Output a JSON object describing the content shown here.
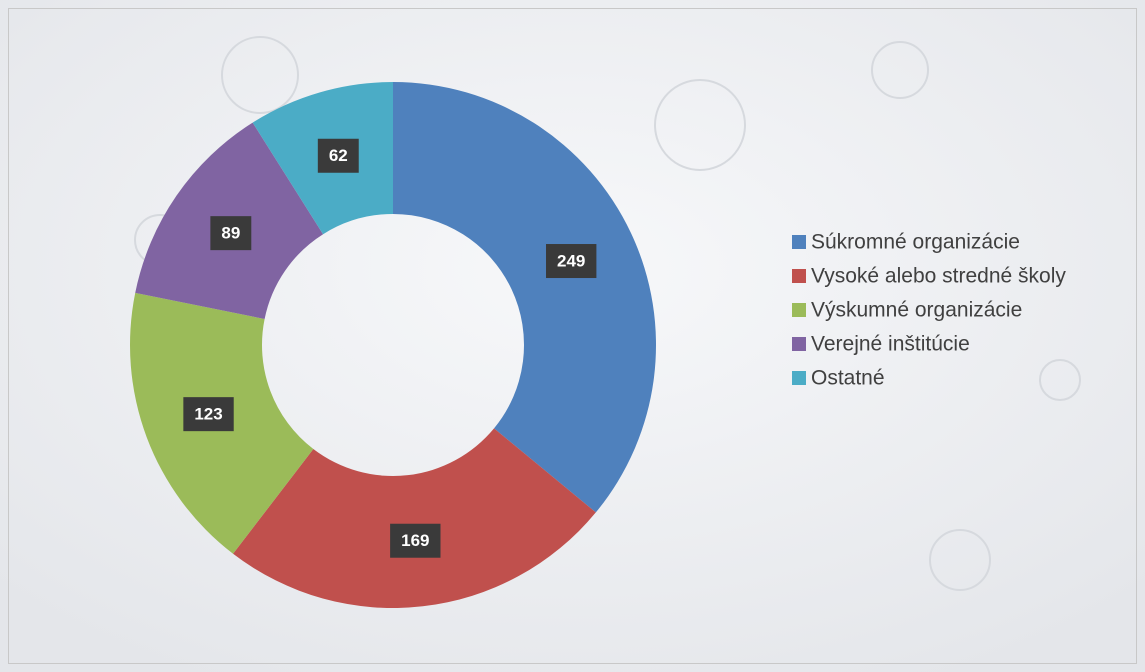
{
  "chart_data": {
    "type": "donut",
    "categories": [
      "Súkromné organizácie",
      "Vysoké alebo stredné školy",
      "Výskumné organizácie",
      "Verejné inštitúcie",
      "Ostatné"
    ],
    "values": [
      249,
      169,
      123,
      89,
      62
    ],
    "colors": [
      "#4f81bd",
      "#c0504d",
      "#9bbb59",
      "#8064a2",
      "#4bacc6"
    ],
    "legend": "right"
  }
}
